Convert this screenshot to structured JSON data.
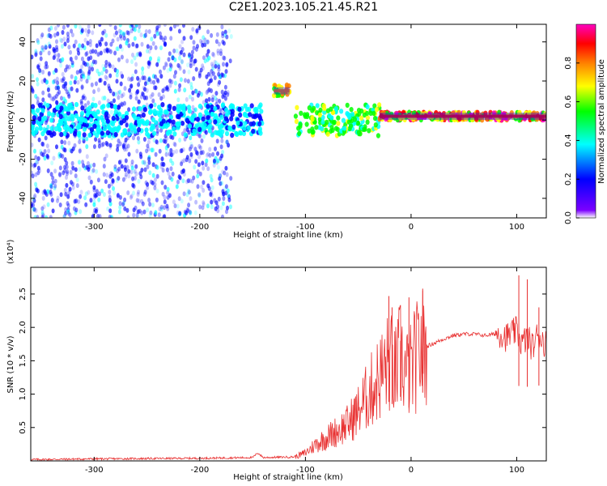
{
  "title": "C2E1.2023.105.21.45.R21",
  "chart_data": [
    {
      "type": "heatmap",
      "xlabel": "Height of straight line (km)",
      "ylabel": "Frequency (Hz)",
      "xlim": [
        -360,
        128
      ],
      "ylim": [
        -50,
        49
      ],
      "xticks": [
        -300,
        -200,
        -100,
        0,
        100
      ],
      "yticks": [
        -40,
        -20,
        0,
        20,
        40
      ],
      "colorbar": {
        "label": "Normalized spectral amplitude",
        "range": [
          0.0,
          1.0
        ],
        "ticks": [
          0.0,
          0.2,
          0.4,
          0.6,
          0.8
        ],
        "colors": [
          "#ffffff",
          "#7b00ff",
          "#0000ff",
          "#00ffff",
          "#00ff00",
          "#ffff00",
          "#ff8000",
          "#ff0000",
          "#ff00c0"
        ]
      },
      "features": [
        {
          "x_range": [
            -360,
            -170
          ],
          "freq_range": [
            -50,
            49
          ],
          "amplitude": 0.1,
          "description_kind": "scattered"
        },
        {
          "x_range": [
            -360,
            -140
          ],
          "freq_range": [
            -8,
            8
          ],
          "amplitude": 0.3
        },
        {
          "x_range": [
            -130,
            -115
          ],
          "freq_range": [
            12,
            18
          ],
          "amplitude": 0.75
        },
        {
          "x_range": [
            -110,
            -30
          ],
          "freq_range": [
            -8,
            8
          ],
          "amplitude": 0.55
        },
        {
          "x_range": [
            -30,
            128
          ],
          "freq_range": [
            0,
            4
          ],
          "amplitude": 0.9
        }
      ]
    },
    {
      "type": "line",
      "xlabel": "Height of straight line (km)",
      "ylabel": "SNR (10 * v/v)",
      "y_multiplier": "(x10⁴)",
      "xlim": [
        -360,
        128
      ],
      "ylim": [
        0,
        2.9
      ],
      "xticks": [
        -300,
        -200,
        -100,
        0,
        100
      ],
      "yticks": [
        0.5,
        1.0,
        1.5,
        2.0,
        2.5
      ],
      "series": [
        {
          "color": "#e83030",
          "x": [
            -360,
            -300,
            -200,
            -150,
            -145,
            -140,
            -110,
            -100,
            -90,
            -80,
            -70,
            -60,
            -50,
            -40,
            -30,
            -20,
            -15,
            -10,
            -5,
            0,
            5,
            10,
            15,
            20,
            30,
            40,
            50,
            60,
            70,
            80,
            85,
            90,
            95,
            100,
            105,
            110,
            115,
            120,
            125,
            128
          ],
          "y": [
            0.02,
            0.03,
            0.04,
            0.05,
            0.12,
            0.05,
            0.06,
            0.12,
            0.25,
            0.35,
            0.45,
            0.55,
            0.75,
            1.0,
            1.25,
            1.5,
            1.3,
            1.6,
            1.3,
            1.35,
            1.55,
            1.7,
            1.72,
            1.75,
            1.82,
            1.88,
            1.9,
            1.9,
            1.88,
            1.9,
            1.92,
            1.85,
            1.9,
            1.95,
            1.75,
            1.85,
            1.7,
            1.9,
            1.8,
            1.75
          ]
        }
      ]
    }
  ]
}
